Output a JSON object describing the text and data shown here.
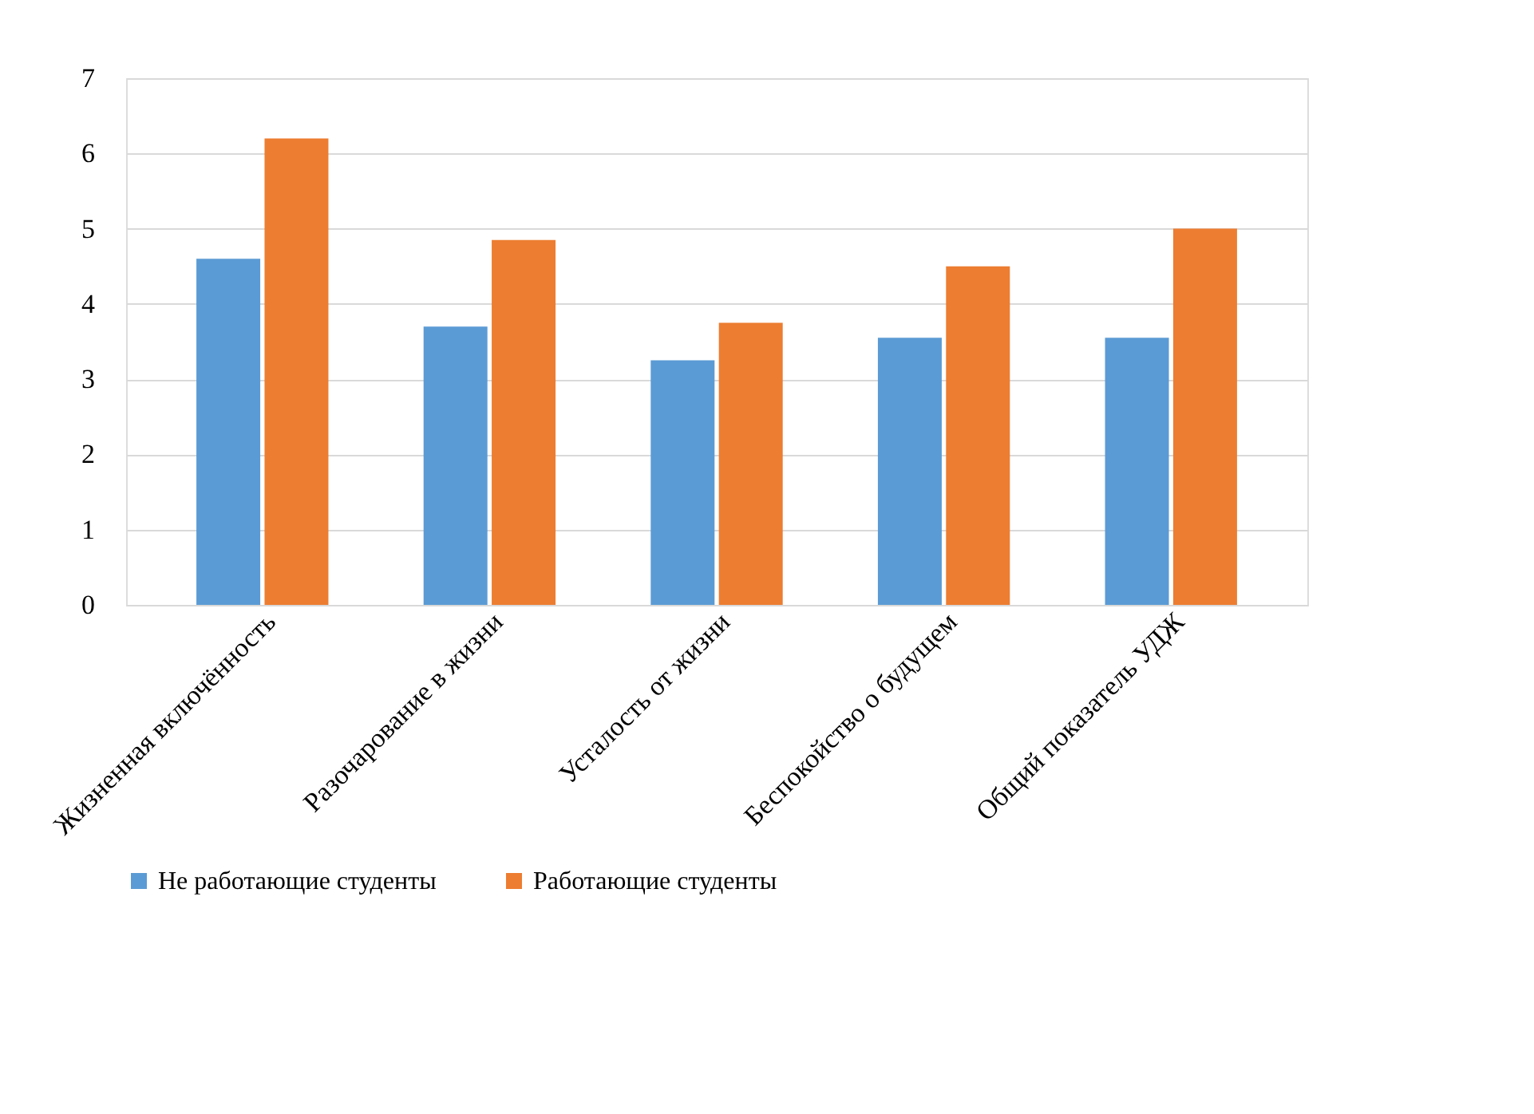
{
  "chart_data": {
    "type": "bar",
    "categories": [
      "Жизненная включённость",
      "Разочарование в жизни",
      "Усталость от жизни",
      "Беспокойство о будущем",
      "Общий показатель УДЖ"
    ],
    "series": [
      {
        "name": "Не работающие студенты",
        "color": "#5b9bd5",
        "values": [
          4.6,
          3.7,
          3.25,
          3.55,
          3.55
        ]
      },
      {
        "name": "Работающие студенты",
        "color": "#ed7d31",
        "values": [
          6.2,
          4.85,
          3.75,
          4.5,
          5.0
        ]
      }
    ],
    "ylim": [
      0,
      7
    ],
    "yticks": [
      0,
      1,
      2,
      3,
      4,
      5,
      6,
      7
    ],
    "grid": "y",
    "legend": "bottom"
  }
}
